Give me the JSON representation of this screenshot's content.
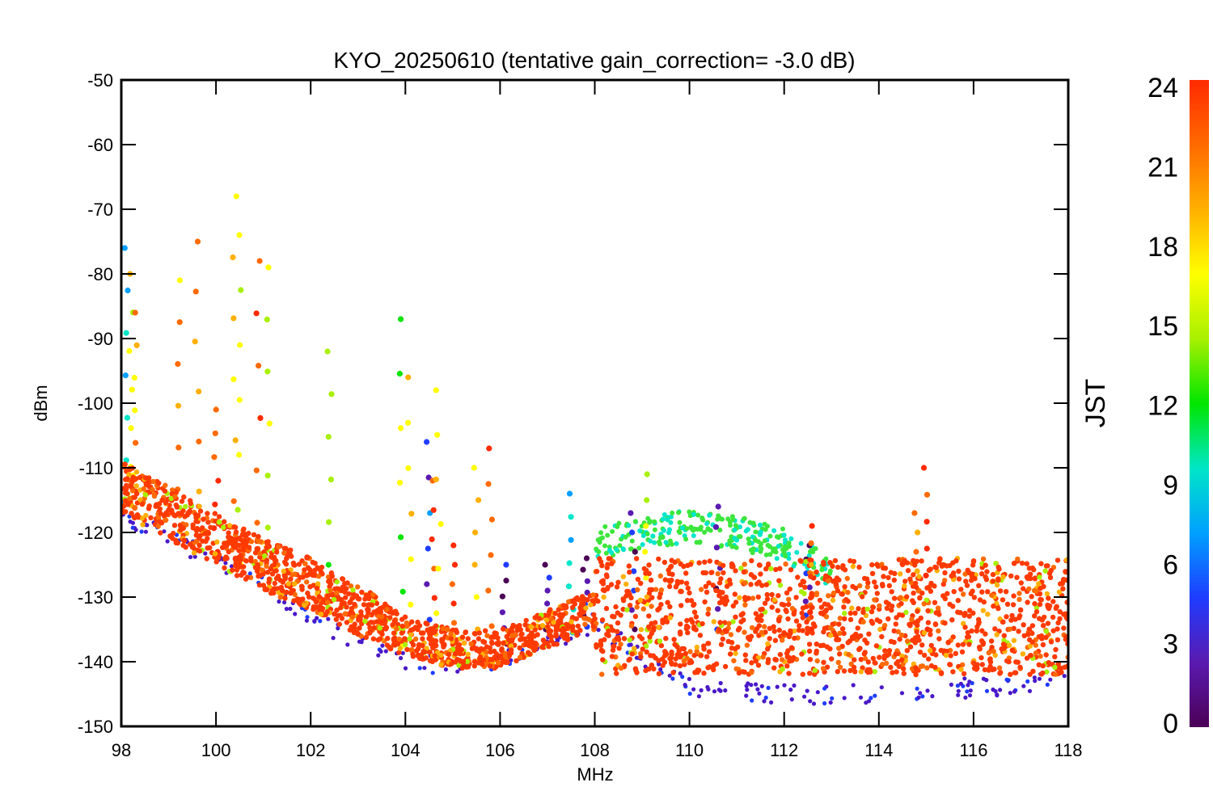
{
  "chart_data": {
    "type": "scatter",
    "title": "KYO_20250610 (tentative gain_correction= -3.0 dB)",
    "xlabel": "MHz",
    "ylabel": "dBm",
    "xlim": [
      98,
      118
    ],
    "ylim": [
      -150,
      -50
    ],
    "xticks": [
      "98",
      "100",
      "102",
      "104",
      "106",
      "108",
      "110",
      "112",
      "114",
      "116",
      "118"
    ],
    "yticks": [
      "-50",
      "-60",
      "-70",
      "-80",
      "-90",
      "-100",
      "-110",
      "-120",
      "-130",
      "-140",
      "-150"
    ],
    "colorbar": {
      "label": "JST",
      "range": [
        0,
        24
      ],
      "ticks": [
        "0",
        "3",
        "6",
        "9",
        "12",
        "15",
        "18",
        "21",
        "24"
      ],
      "colormap": "rainbow",
      "stops": [
        "#4b0055",
        "#5a1ab0",
        "#1f3cff",
        "#00a0ff",
        "#00e6c8",
        "#00e600",
        "#a8f000",
        "#ffff00",
        "#ffb000",
        "#ff6a00",
        "#ff2a00"
      ]
    },
    "series": [
      {
        "description": "noise floor band, JST ~22-24 (dominant)",
        "color": "#ff3a00",
        "x": [
          98,
          99,
          100,
          101,
          102,
          103,
          104,
          105,
          106,
          107,
          108,
          108.01,
          110,
          112,
          114,
          116,
          118
        ],
        "y": [
          -113,
          -117,
          -121,
          -125,
          -128,
          -132,
          -136,
          -138,
          -138,
          -135,
          -132,
          -133,
          -133,
          -133,
          -133,
          -133,
          -133
        ],
        "spread": [
          4,
          4,
          4,
          4,
          4,
          4,
          3,
          3,
          3,
          3,
          3,
          9,
          9,
          9,
          9,
          9,
          9
        ]
      },
      {
        "description": "lowest noise envelope, JST ~2-4",
        "color": "#4a18c8",
        "x": [
          98,
          99,
          100,
          101,
          102,
          103,
          104,
          105,
          106,
          107,
          108,
          110,
          112,
          114,
          116,
          118
        ],
        "y": [
          -117,
          -121,
          -124,
          -128,
          -133,
          -137,
          -140,
          -141,
          -140,
          -137,
          -134,
          -144,
          -145,
          -145,
          -144,
          -143
        ]
      },
      {
        "description": "mid-day bump 108-112 MHz, JST ~12-16",
        "color": "#3ce63c",
        "x": [
          108,
          109,
          110,
          111,
          112,
          113
        ],
        "y": [
          -122,
          -120,
          -119,
          -120,
          -122,
          -126
        ]
      }
    ],
    "spikes": [
      {
        "x": 98.1,
        "top": -76,
        "jst": 8
      },
      {
        "x": 98.2,
        "top": -80,
        "jst": 17
      },
      {
        "x": 98.3,
        "top": -86,
        "jst": 19
      },
      {
        "x": 99.2,
        "top": -81,
        "jst": 20
      },
      {
        "x": 99.6,
        "top": -75,
        "jst": 21
      },
      {
        "x": 100.0,
        "top": -101,
        "jst": 23
      },
      {
        "x": 100.4,
        "top": -68,
        "jst": 19
      },
      {
        "x": 100.5,
        "top": -74,
        "jst": 16
      },
      {
        "x": 100.9,
        "top": -78,
        "jst": 22
      },
      {
        "x": 101.1,
        "top": -79,
        "jst": 15
      },
      {
        "x": 102.4,
        "top": -92,
        "jst": 13
      },
      {
        "x": 103.9,
        "top": -87,
        "jst": 14
      },
      {
        "x": 104.1,
        "top": -96,
        "jst": 19
      },
      {
        "x": 104.5,
        "top": -106,
        "jst": 4
      },
      {
        "x": 104.6,
        "top": -112,
        "jst": 23
      },
      {
        "x": 104.7,
        "top": -98,
        "jst": 17
      },
      {
        "x": 105.0,
        "top": -122,
        "jst": 23
      },
      {
        "x": 105.5,
        "top": -110,
        "jst": 18
      },
      {
        "x": 105.8,
        "top": -107,
        "jst": 23
      },
      {
        "x": 106.1,
        "top": -125,
        "jst": 2
      },
      {
        "x": 107.0,
        "top": -125,
        "jst": 2
      },
      {
        "x": 107.5,
        "top": -114,
        "jst": 9
      },
      {
        "x": 107.8,
        "top": -124,
        "jst": 2
      },
      {
        "x": 108.8,
        "top": -117,
        "jst": 2
      },
      {
        "x": 109.1,
        "top": -111,
        "jst": 17
      },
      {
        "x": 110.6,
        "top": -116,
        "jst": 2
      },
      {
        "x": 112.5,
        "top": -122,
        "jst": 2
      },
      {
        "x": 112.6,
        "top": -119,
        "jst": 23
      },
      {
        "x": 114.8,
        "top": -117,
        "jst": 19
      },
      {
        "x": 115.0,
        "top": -110,
        "jst": 23
      }
    ]
  }
}
